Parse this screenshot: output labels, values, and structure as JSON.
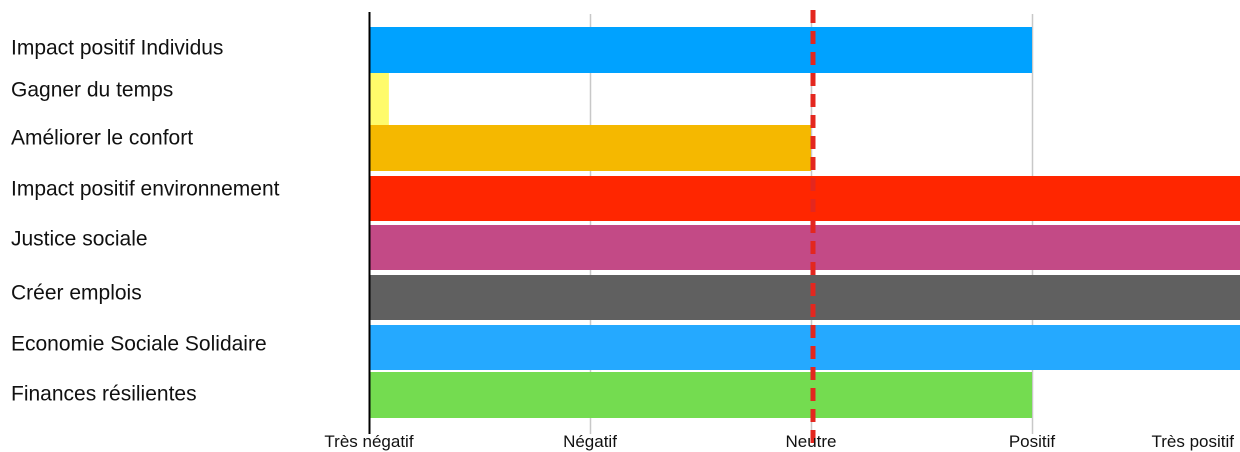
{
  "chart_data": {
    "type": "bar",
    "orientation": "horizontal",
    "categories": [
      "Impact positif Individus",
      "Gagner du temps",
      "Améliorer le confort",
      "Impact positif environnement",
      "Justice sociale",
      "Créer emplois",
      "Economie Sociale Solidaire",
      "Finances résilientes"
    ],
    "values": [
      3,
      0.09,
      2,
      3.95,
      3.95,
      3.95,
      3.95,
      3
    ],
    "colors": [
      "#00a2ff",
      "#fffb6a",
      "#f5b800",
      "#ff2600",
      "#c34a86",
      "#606060",
      "#25a9ff",
      "#74dc50"
    ],
    "xticks": [
      0,
      1,
      2,
      3,
      4
    ],
    "xtick_labels": [
      "Très négatif",
      "Négatif",
      "Neutre",
      "Positif",
      "Très positif"
    ],
    "xlim": [
      0,
      3.95
    ],
    "grid": true,
    "reference_line": {
      "value": 2,
      "style": "dashed",
      "color": "#e3271f"
    }
  }
}
